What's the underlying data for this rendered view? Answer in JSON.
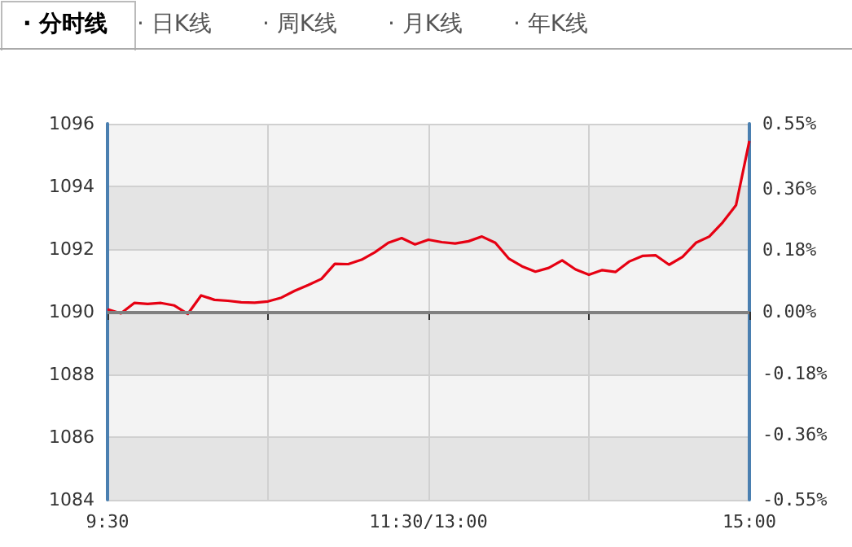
{
  "chart_data": {
    "type": "line",
    "annotations": [
      "· 分时线",
      "· 日K线",
      "· 周K线",
      "· 月K线",
      "· 年K线"
    ],
    "categories": [
      "9:30",
      null,
      null,
      null,
      null,
      null,
      null,
      null,
      null,
      null,
      null,
      null,
      null,
      null,
      null,
      null,
      null,
      null,
      null,
      null,
      null,
      null,
      null,
      null,
      "11:30/13:00",
      null,
      null,
      null,
      null,
      null,
      null,
      null,
      null,
      null,
      null,
      null,
      null,
      null,
      null,
      null,
      null,
      null,
      null,
      null,
      null,
      null,
      null,
      null,
      "15:00"
    ],
    "series": [
      {
        "color": "#e60012",
        "values": [
          1090.08,
          1089.95,
          1090.28,
          1090.25,
          1090.28,
          1090.2,
          1089.93,
          1090.52,
          1090.38,
          1090.35,
          1090.3,
          1090.29,
          1090.33,
          1090.45,
          1090.67,
          1090.85,
          1091.05,
          1091.53,
          1091.52,
          1091.66,
          1091.9,
          1092.2,
          1092.35,
          1092.15,
          1092.3,
          1092.22,
          1092.18,
          1092.25,
          1092.4,
          1092.2,
          1091.7,
          1091.45,
          1091.28,
          1091.4,
          1091.64,
          1091.35,
          1091.18,
          1091.33,
          1091.27,
          1091.6,
          1091.78,
          1091.8,
          1091.5,
          1091.75,
          1092.2,
          1092.4,
          1092.85,
          1093.4,
          1095.45
        ]
      }
    ],
    "ylim": [
      1084,
      1096
    ],
    "yticks": [
      1084,
      1086,
      1088,
      1090,
      1092,
      1094,
      1096
    ],
    "y2lim": [
      -0.55,
      0.55
    ],
    "y2ticks": [
      {
        "value": -0.55,
        "label": "-0.55%"
      },
      {
        "value": -0.36,
        "label": "-0.36%"
      },
      {
        "value": -0.18,
        "label": "-0.18%"
      },
      {
        "value": 0,
        "label": "0.00%"
      },
      {
        "value": 0.18,
        "label": "0.18%"
      },
      {
        "value": 0.36,
        "label": "0.36%"
      },
      {
        "value": 0.55,
        "label": "0.55%"
      }
    ],
    "ref_lines": [
      {
        "axis": "y",
        "value": 1090,
        "color": "#808080"
      }
    ],
    "grid": true,
    "marker": "none",
    "line_style": "solid"
  }
}
